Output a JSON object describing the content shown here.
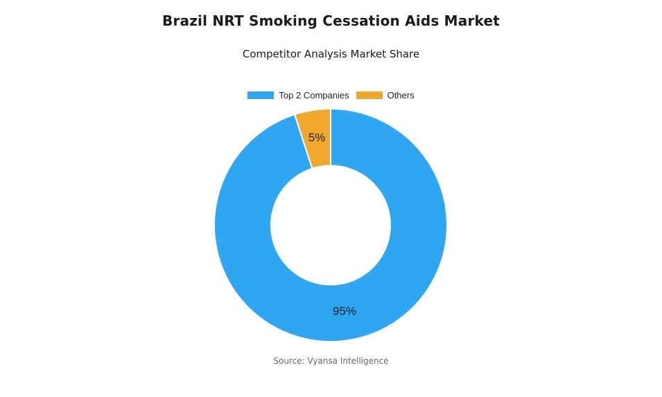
{
  "chart_data": {
    "type": "pie",
    "title": "Brazil NRT Smoking Cessation Aids Market",
    "subtitle": "Competitor Analysis Market Share",
    "legend_position": "top-center",
    "donut": true,
    "slices": [
      {
        "name": "Top 2 Companies",
        "value": 95,
        "label": "95%",
        "color": "#2ea6f2"
      },
      {
        "name": "Others",
        "value": 5,
        "label": "5%",
        "color": "#f0a82c"
      }
    ]
  },
  "source": "Source: Vyansa Intelligence"
}
